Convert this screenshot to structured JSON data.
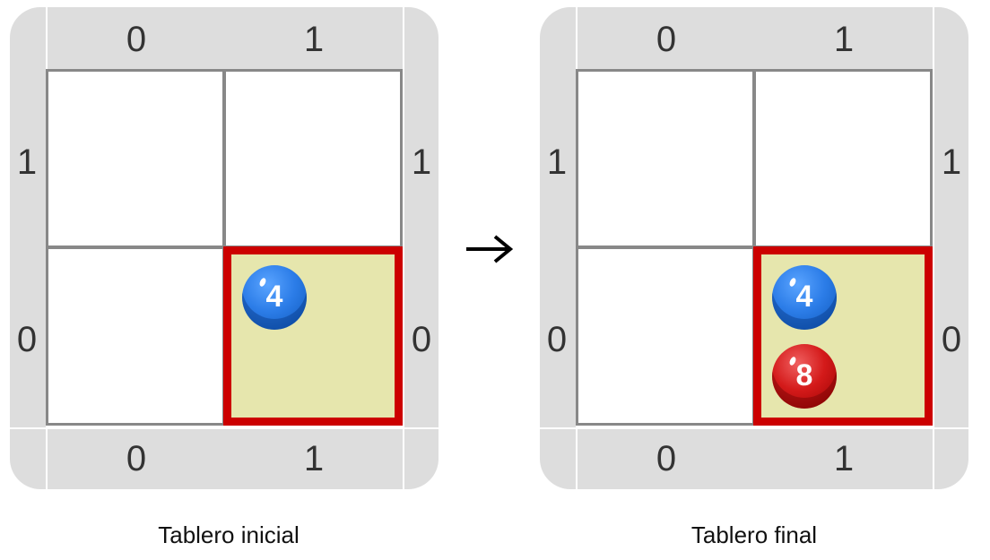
{
  "boards": {
    "initial": {
      "top_labels": [
        "0",
        "1"
      ],
      "bottom_labels": [
        "0",
        "1"
      ],
      "left_labels": [
        "1",
        "0"
      ],
      "right_labels": [
        "1",
        "0"
      ],
      "caption": "Tablero inicial",
      "selected_cell": {
        "col": 1,
        "row": 0
      },
      "pieces": [
        {
          "value": "4",
          "color": "blue",
          "col": 1,
          "row": 0
        }
      ]
    },
    "final": {
      "top_labels": [
        "0",
        "1"
      ],
      "bottom_labels": [
        "0",
        "1"
      ],
      "left_labels": [
        "1",
        "0"
      ],
      "right_labels": [
        "1",
        "0"
      ],
      "caption": "Tablero final",
      "selected_cell": {
        "col": 1,
        "row": 0
      },
      "pieces": [
        {
          "value": "4",
          "color": "blue",
          "col": 1,
          "row": 0
        },
        {
          "value": "8",
          "color": "red",
          "col": 1,
          "row": 0
        }
      ]
    }
  },
  "colors": {
    "frame": "#dddddd",
    "selected_fill": "#e6e6ad",
    "selected_border": "#cc0000",
    "grid_line": "#888888",
    "blue_piece": "#2c7de8",
    "red_piece": "#d41a1a"
  },
  "arrow_icon": "right-arrow-icon"
}
